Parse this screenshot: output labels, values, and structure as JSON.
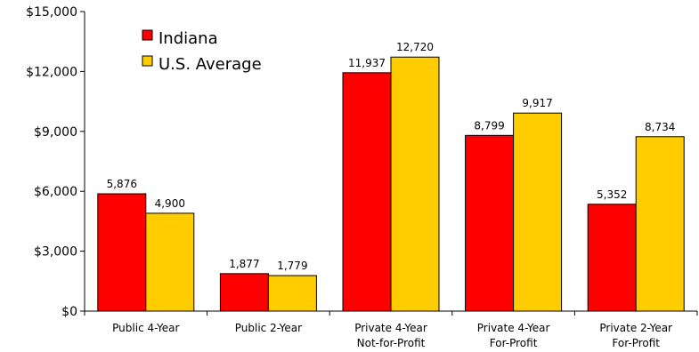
{
  "chart_data": {
    "type": "bar",
    "categories": [
      [
        "Public 4-Year"
      ],
      [
        "Public 2-Year"
      ],
      [
        "Private 4-Year",
        "Not-for-Profit"
      ],
      [
        "Private 4-Year",
        "For-Profit"
      ],
      [
        "Private 2-Year",
        "For-Profit"
      ]
    ],
    "series": [
      {
        "name": "Indiana",
        "color": "#ff0000",
        "values": [
          5876,
          1877,
          11937,
          8799,
          5352
        ],
        "labels": [
          "5,876",
          "1,877",
          "11,937",
          "8,799",
          "5,352"
        ]
      },
      {
        "name": "U.S. Average",
        "color": "#ffcc00",
        "values": [
          4900,
          1779,
          12720,
          9917,
          8734
        ],
        "labels": [
          "4,900",
          "1,779",
          "12,720",
          "9,917",
          "8,734"
        ]
      }
    ],
    "yticks": [
      0,
      3000,
      6000,
      9000,
      12000,
      15000
    ],
    "ytick_labels": [
      "$0",
      "$3,000",
      "$6,000",
      "$9,000",
      "$12,000",
      "$15,000"
    ],
    "ylim": [
      0,
      15000
    ],
    "grid": false,
    "legend_position": "top-left"
  }
}
